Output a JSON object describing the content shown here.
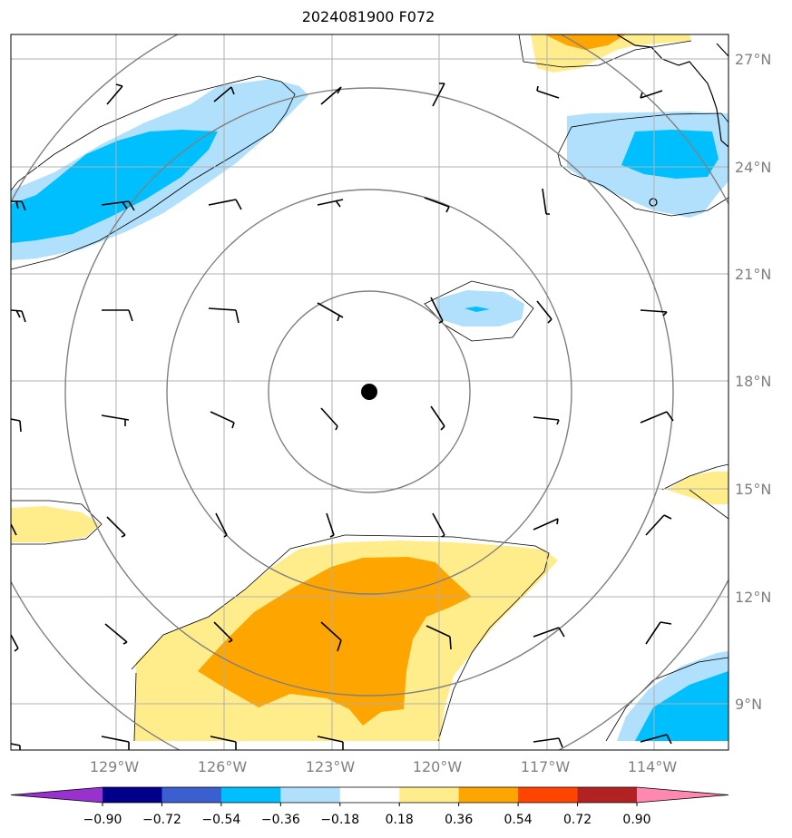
{
  "title": "2024081900 F072",
  "map": {
    "lat_labels": [
      "27°N",
      "24°N",
      "21°N",
      "18°N",
      "15°N",
      "12°N",
      "9°N"
    ],
    "lon_labels": [
      "129°W",
      "126°W",
      "123°W",
      "120°W",
      "117°W",
      "114°W"
    ],
    "center_marker": "storm-center-dot"
  },
  "colorbar": {
    "ticks": [
      "−0.90",
      "−0.72",
      "−0.54",
      "−0.36",
      "−0.18",
      "0.18",
      "0.36",
      "0.54",
      "0.72",
      "0.90"
    ],
    "colors": [
      "#9932cc",
      "#00008b",
      "#3b5fcf",
      "#00bfff",
      "#b0e0fb",
      "#ffffff",
      "#ffec8b",
      "#ffa500",
      "#ff4500",
      "#b22222",
      "#ff88b0"
    ]
  }
}
